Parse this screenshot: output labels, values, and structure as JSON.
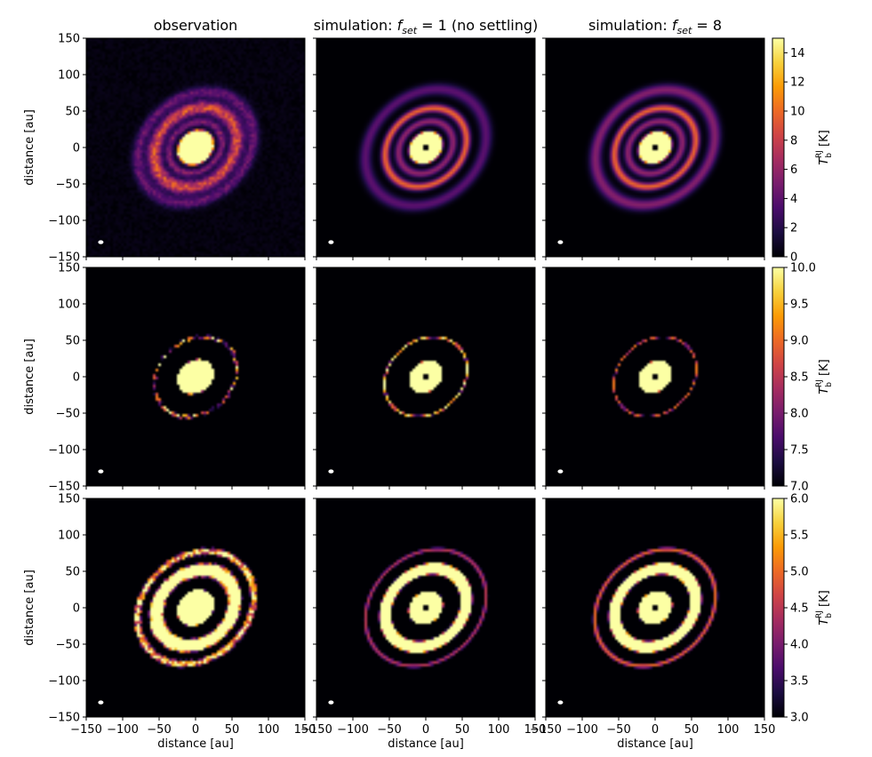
{
  "figure": {
    "column_titles": [
      {
        "pre": "observation",
        "italic": "",
        "sub": "",
        "post": ""
      },
      {
        "pre": "simulation: ",
        "italic": "f",
        "sub": "set",
        "post": " = 1 (no settling)"
      },
      {
        "pre": "simulation: ",
        "italic": "f",
        "sub": "set",
        "post": " = 8"
      }
    ],
    "ylabel": "distance [au]",
    "xlabel": "distance [au]",
    "colorbar_label": {
      "main": "T",
      "sub": "b",
      "sup": "RJ",
      "unit": " [K]"
    },
    "colormap": "inferno",
    "colormap_stops": [
      "#000004",
      "#1b0c41",
      "#4a0c6b",
      "#781c6d",
      "#a52c60",
      "#cf4446",
      "#ed6925",
      "#fb9b06",
      "#f7d13d",
      "#fcffa4"
    ]
  },
  "chart_data": {
    "type": "heatmap",
    "axes": {
      "xlim": [
        -150,
        150
      ],
      "ylim": [
        -150,
        150
      ],
      "xticks": [
        -150,
        -100,
        -50,
        0,
        50,
        100,
        150
      ],
      "yticks": [
        -150,
        -100,
        -50,
        0,
        50,
        100,
        150
      ],
      "xlabel": "distance [au]",
      "ylabel": "distance [au]"
    },
    "disk": {
      "inclination_deg": 35,
      "position_angle_deg": 40,
      "ring_radii_au": [
        0,
        28,
        62,
        88
      ]
    },
    "rows": [
      {
        "colorbar": {
          "min": 0,
          "max": 15,
          "ticks": [
            0,
            2,
            4,
            6,
            8,
            10,
            12,
            14
          ]
        },
        "panels": [
          {
            "title": "observation",
            "hole": false,
            "components": [
              {
                "r": 0,
                "w": 0,
                "peak": 20,
                "core_r": 24
              },
              {
                "r": 39,
                "w": 4,
                "peak": 5
              },
              {
                "r": 61,
                "w": 7,
                "peak": 8.5
              },
              {
                "r": 85,
                "w": 6,
                "peak": 4
              }
            ],
            "noise": true
          },
          {
            "title": "simulation: fset = 1",
            "hole": true,
            "components": [
              {
                "r": 0,
                "w": 0,
                "peak": 20,
                "core_r": 22
              },
              {
                "r": 40,
                "w": 4,
                "peak": 6
              },
              {
                "r": 60,
                "w": 4,
                "peak": 10
              },
              {
                "r": 89,
                "w": 6,
                "peak": 4
              }
            ]
          },
          {
            "title": "simulation: fset = 8",
            "hole": true,
            "components": [
              {
                "r": 0,
                "w": 0,
                "peak": 20,
                "core_r": 22
              },
              {
                "r": 40,
                "w": 4,
                "peak": 6
              },
              {
                "r": 60,
                "w": 4,
                "peak": 10
              },
              {
                "r": 88,
                "w": 6,
                "peak": 5.5
              }
            ]
          }
        ]
      },
      {
        "colorbar": {
          "min": 7.0,
          "max": 10.0,
          "ticks": [
            7.0,
            7.5,
            8.0,
            8.5,
            9.0,
            9.5,
            10.0
          ]
        },
        "panels": [
          {
            "title": "observation",
            "hole": false,
            "components": [
              {
                "r": 0,
                "w": 0,
                "peak": 20,
                "core_r": 24
              },
              {
                "r": 61,
                "w": 4,
                "peak": 8.8
              }
            ],
            "noise": true
          },
          {
            "title": "simulation: fset = 1",
            "hole": true,
            "components": [
              {
                "r": 0,
                "w": 0,
                "peak": 20,
                "core_r": 22
              },
              {
                "r": 61,
                "w": 2.5,
                "peak": 10
              }
            ]
          },
          {
            "title": "simulation: fset = 8",
            "hole": true,
            "components": [
              {
                "r": 0,
                "w": 0,
                "peak": 20,
                "core_r": 22
              },
              {
                "r": 61,
                "w": 2.5,
                "peak": 9.1
              }
            ]
          }
        ]
      },
      {
        "colorbar": {
          "min": 3.0,
          "max": 6.0,
          "ticks": [
            3.0,
            3.5,
            4.0,
            4.5,
            5.0,
            5.5,
            6.0
          ]
        },
        "panels": [
          {
            "title": "observation",
            "hole": false,
            "components": [
              {
                "r": 0,
                "w": 0,
                "peak": 20,
                "core_r": 24
              },
              {
                "r": 58,
                "w": 7,
                "peak": 12
              },
              {
                "r": 86,
                "w": 5,
                "peak": 6.0
              }
            ],
            "noise": true
          },
          {
            "title": "simulation: fset = 1",
            "hole": true,
            "components": [
              {
                "r": 0,
                "w": 0,
                "peak": 20,
                "core_r": 22
              },
              {
                "r": 60,
                "w": 5,
                "peak": 20
              },
              {
                "r": 89,
                "w": 4,
                "peak": 4.5
              }
            ]
          },
          {
            "title": "simulation: fset = 8",
            "hole": true,
            "components": [
              {
                "r": 0,
                "w": 0,
                "peak": 20,
                "core_r": 22
              },
              {
                "r": 60,
                "w": 5,
                "peak": 20
              },
              {
                "r": 89,
                "w": 4,
                "peak": 5.0
              }
            ]
          }
        ]
      }
    ]
  }
}
